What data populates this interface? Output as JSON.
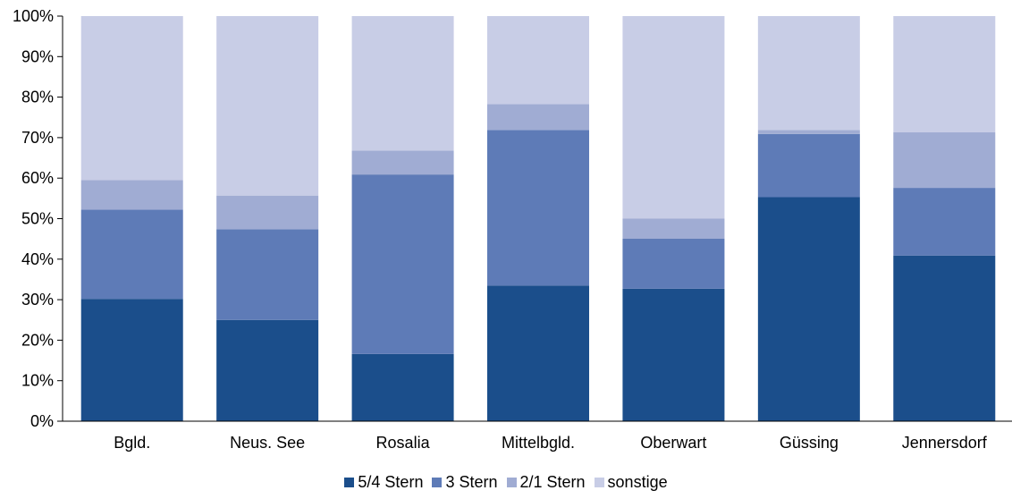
{
  "chart_data": {
    "type": "bar",
    "stacked": true,
    "normalized": true,
    "categories": [
      "Bgld.",
      "Neus. See",
      "Rosalia",
      "Mittelbgld.",
      "Oberwart",
      "Güssing",
      "Jennersdorf"
    ],
    "series": [
      {
        "name": "5/4 Stern",
        "color": "#1b4e8b",
        "values": [
          30.2,
          25.0,
          16.6,
          33.5,
          32.7,
          55.3,
          40.9
        ]
      },
      {
        "name": "3 Stern",
        "color": "#5e7bb7",
        "values": [
          22.0,
          22.4,
          44.3,
          38.4,
          12.4,
          15.6,
          16.7
        ]
      },
      {
        "name": "2/1 Stern",
        "color": "#a0acd3",
        "values": [
          7.3,
          8.3,
          5.9,
          6.4,
          4.9,
          1.0,
          13.7
        ]
      },
      {
        "name": "sonstige",
        "color": "#c8cde6",
        "values": [
          40.5,
          44.3,
          33.2,
          21.7,
          50.0,
          28.1,
          28.7
        ]
      }
    ],
    "ylim": [
      0,
      100
    ],
    "yticks": [
      "0%",
      "10%",
      "20%",
      "30%",
      "40%",
      "50%",
      "60%",
      "70%",
      "80%",
      "90%",
      "100%"
    ],
    "legend_position": "bottom",
    "grid": false
  }
}
